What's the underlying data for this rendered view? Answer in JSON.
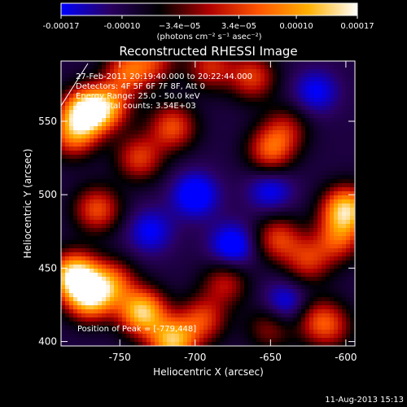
{
  "chart_data": {
    "type": "heatmap",
    "title": "Reconstructed RHESSI Image",
    "xlabel": "Heliocentric X (arcsec)",
    "ylabel": "Heliocentric Y (arcsec)",
    "xlim": [
      -789,
      -594
    ],
    "ylim": [
      397,
      591
    ],
    "x_ticks": [
      -750,
      -700,
      -650,
      -600
    ],
    "y_ticks": [
      400,
      450,
      500,
      550
    ],
    "colorbar": {
      "range": [
        -0.00017,
        0.00017
      ],
      "tick_values": [
        -0.00017,
        -0.0001,
        -3.4e-05,
        3.4e-05,
        0.0001,
        0.00017
      ],
      "tick_labels": [
        "-0.00017",
        "-0.00010",
        "−3.4e−05",
        "3.4e−05",
        "0.00010",
        "0.00017"
      ],
      "unit_label": "(photons cm⁻² s⁻¹ asec⁻²)",
      "colors": [
        "#0000ff",
        "#2a0060",
        "#000000",
        "#b00000",
        "#ff5500",
        "#ffb000",
        "#ffffff"
      ]
    },
    "annotations": [
      "27-Feb-2011 20:19:40.000 to 20:22:44.000",
      "Detectors: 4F 5F 6F 7F 8F, Att 0",
      "Energy Range: 25.0 - 50.0 keV",
      "Clean     Total counts: 3.54E+03"
    ],
    "peak_label": "Position of Peak = [-779,448]",
    "peak_position": [
      -779,
      448
    ],
    "blobs": [
      {
        "x": -773,
        "y": 556,
        "v": 1.0
      },
      {
        "x": -758,
        "y": 560,
        "v": 0.6
      },
      {
        "x": -781,
        "y": 540,
        "v": 0.55
      },
      {
        "x": -745,
        "y": 584,
        "v": 0.55
      },
      {
        "x": -715,
        "y": 546,
        "v": 0.55
      },
      {
        "x": -737,
        "y": 525,
        "v": 0.5
      },
      {
        "x": -690,
        "y": 587,
        "v": 0.45
      },
      {
        "x": -662,
        "y": 580,
        "v": 0.5
      },
      {
        "x": -650,
        "y": 530,
        "v": 0.55
      },
      {
        "x": -640,
        "y": 545,
        "v": 0.35
      },
      {
        "x": -600,
        "y": 490,
        "v": 0.9
      },
      {
        "x": -605,
        "y": 470,
        "v": 0.5
      },
      {
        "x": -765,
        "y": 490,
        "v": 0.55
      },
      {
        "x": -780,
        "y": 445,
        "v": 1.0
      },
      {
        "x": -770,
        "y": 430,
        "v": 0.85
      },
      {
        "x": -755,
        "y": 440,
        "v": 0.55
      },
      {
        "x": -735,
        "y": 420,
        "v": 0.9
      },
      {
        "x": -715,
        "y": 400,
        "v": 0.85
      },
      {
        "x": -695,
        "y": 415,
        "v": 0.5
      },
      {
        "x": -680,
        "y": 440,
        "v": 0.4
      },
      {
        "x": -645,
        "y": 470,
        "v": 0.5
      },
      {
        "x": -625,
        "y": 455,
        "v": 0.45
      },
      {
        "x": -650,
        "y": 410,
        "v": 0.35
      },
      {
        "x": -620,
        "y": 415,
        "v": 0.35
      },
      {
        "x": -610,
        "y": 410,
        "v": 0.35
      },
      {
        "x": -727,
        "y": 591,
        "v": 0.4
      },
      {
        "x": -700,
        "y": 500,
        "v": -0.4
      },
      {
        "x": -730,
        "y": 475,
        "v": -0.3
      },
      {
        "x": -675,
        "y": 465,
        "v": -0.4
      },
      {
        "x": -640,
        "y": 425,
        "v": -0.35
      },
      {
        "x": -620,
        "y": 570,
        "v": -0.3
      },
      {
        "x": -650,
        "y": 503,
        "v": -0.3
      }
    ]
  },
  "timestamp": "11-Aug-2013 15:13"
}
